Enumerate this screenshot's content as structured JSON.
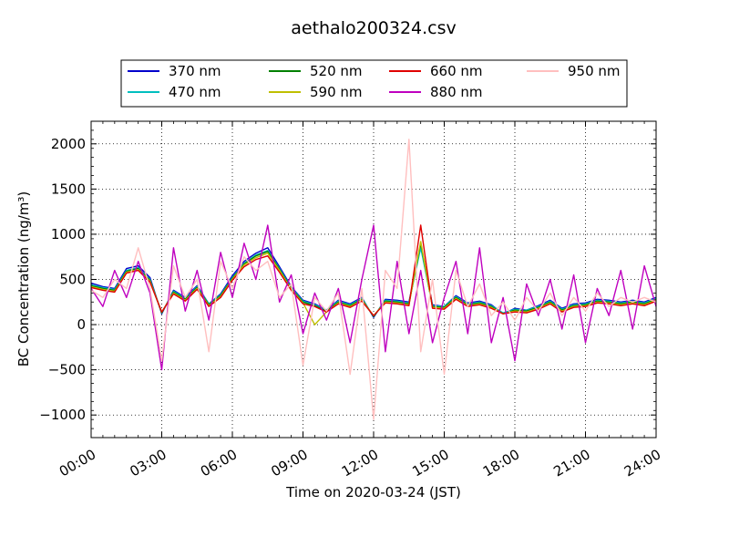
{
  "chart_data": {
    "type": "line",
    "title": "aethalo200324.csv",
    "xlabel": "Time on 2020-03-24 (JST)",
    "ylabel": "BC Concentration (ng/m³)",
    "xlim": [
      "00:00",
      "24:00"
    ],
    "ylim": [
      -1250,
      2250
    ],
    "x_ticks": [
      "00:00",
      "03:00",
      "06:00",
      "09:00",
      "12:00",
      "15:00",
      "18:00",
      "21:00",
      "24:00"
    ],
    "y_ticks": [
      -1000,
      -500,
      0,
      500,
      1000,
      1500,
      2000
    ],
    "y_tick_labels": [
      "−1000",
      "−500",
      "0",
      "500",
      "1000",
      "1500",
      "2000"
    ],
    "grid": true,
    "legend_position": "top-center",
    "series": [
      {
        "name": "370 nm",
        "color": "#0000cc",
        "x": [
          "00:00",
          "00:30",
          "01:00",
          "01:30",
          "02:00",
          "02:30",
          "03:00",
          "03:30",
          "04:00",
          "04:30",
          "05:00",
          "05:30",
          "06:00",
          "06:30",
          "07:00",
          "07:30",
          "08:00",
          "08:30",
          "09:00",
          "09:30",
          "10:00",
          "10:30",
          "11:00",
          "11:30",
          "12:00",
          "12:30",
          "13:00",
          "13:30",
          "14:00",
          "14:30",
          "15:00",
          "15:30",
          "16:00",
          "16:30",
          "17:00",
          "17:30",
          "18:00",
          "18:30",
          "19:00",
          "19:30",
          "20:00",
          "20:30",
          "21:00",
          "21:30",
          "22:00",
          "22:30",
          "23:00",
          "23:30",
          "24:00"
        ],
        "values": [
          460,
          420,
          400,
          620,
          650,
          520,
          120,
          380,
          300,
          430,
          230,
          340,
          540,
          700,
          790,
          850,
          640,
          420,
          270,
          230,
          160,
          270,
          230,
          300,
          80,
          280,
          270,
          250,
          880,
          220,
          200,
          320,
          240,
          260,
          220,
          120,
          180,
          160,
          210,
          270,
          180,
          230,
          240,
          280,
          270,
          250,
          270,
          250,
          300
        ]
      },
      {
        "name": "470 nm",
        "color": "#00bfbf",
        "x": [
          "00:00",
          "00:30",
          "01:00",
          "01:30",
          "02:00",
          "02:30",
          "03:00",
          "03:30",
          "04:00",
          "04:30",
          "05:00",
          "05:30",
          "06:00",
          "06:30",
          "07:00",
          "07:30",
          "08:00",
          "08:30",
          "09:00",
          "09:30",
          "10:00",
          "10:30",
          "11:00",
          "11:30",
          "12:00",
          "12:30",
          "13:00",
          "13:30",
          "14:00",
          "14:30",
          "15:00",
          "15:30",
          "16:00",
          "16:30",
          "17:00",
          "17:30",
          "18:00",
          "18:30",
          "19:00",
          "19:30",
          "20:00",
          "20:30",
          "21:00",
          "21:30",
          "22:00",
          "22:30",
          "23:00",
          "23:30",
          "24:00"
        ],
        "values": [
          440,
          410,
          390,
          600,
          630,
          500,
          130,
          370,
          290,
          420,
          230,
          330,
          520,
          680,
          770,
          820,
          620,
          410,
          260,
          220,
          160,
          260,
          220,
          290,
          90,
          270,
          260,
          240,
          850,
          210,
          200,
          310,
          230,
          250,
          210,
          130,
          170,
          160,
          200,
          260,
          170,
          220,
          230,
          270,
          260,
          240,
          260,
          240,
          290
        ]
      },
      {
        "name": "520 nm",
        "color": "#008000",
        "x": [
          "00:00",
          "00:30",
          "01:00",
          "01:30",
          "02:00",
          "02:30",
          "03:00",
          "03:30",
          "04:00",
          "04:30",
          "05:00",
          "05:30",
          "06:00",
          "06:30",
          "07:00",
          "07:30",
          "08:00",
          "08:30",
          "09:00",
          "09:30",
          "10:00",
          "10:30",
          "11:00",
          "11:30",
          "12:00",
          "12:30",
          "13:00",
          "13:30",
          "14:00",
          "14:30",
          "15:00",
          "15:30",
          "16:00",
          "16:30",
          "17:00",
          "17:30",
          "18:00",
          "18:30",
          "19:00",
          "19:30",
          "20:00",
          "20:30",
          "21:00",
          "21:30",
          "22:00",
          "22:30",
          "23:00",
          "23:30",
          "24:00"
        ],
        "values": [
          430,
          400,
          380,
          590,
          620,
          490,
          130,
          360,
          280,
          410,
          220,
          320,
          510,
          670,
          760,
          810,
          610,
          400,
          250,
          210,
          150,
          250,
          210,
          280,
          90,
          260,
          250,
          230,
          900,
          200,
          190,
          300,
          220,
          240,
          200,
          120,
          160,
          150,
          190,
          250,
          160,
          210,
          220,
          260,
          250,
          230,
          250,
          230,
          280
        ]
      },
      {
        "name": "590 nm",
        "color": "#bfbf00",
        "x": [
          "00:00",
          "00:30",
          "01:00",
          "01:30",
          "02:00",
          "02:30",
          "03:00",
          "03:30",
          "04:00",
          "04:30",
          "05:00",
          "05:30",
          "06:00",
          "06:30",
          "07:00",
          "07:30",
          "08:00",
          "08:30",
          "09:00",
          "09:30",
          "10:00",
          "10:30",
          "11:00",
          "11:30",
          "12:00",
          "12:30",
          "13:00",
          "13:30",
          "14:00",
          "14:30",
          "15:00",
          "15:30",
          "16:00",
          "16:30",
          "17:00",
          "17:30",
          "18:00",
          "18:30",
          "19:00",
          "19:30",
          "20:00",
          "20:30",
          "21:00",
          "21:30",
          "22:00",
          "22:30",
          "23:00",
          "23:30",
          "24:00"
        ],
        "values": [
          420,
          390,
          370,
          580,
          610,
          480,
          140,
          350,
          270,
          400,
          210,
          310,
          500,
          660,
          740,
          790,
          600,
          390,
          240,
          0,
          140,
          240,
          200,
          270,
          100,
          250,
          240,
          220,
          920,
          190,
          180,
          290,
          210,
          230,
          190,
          120,
          150,
          140,
          180,
          240,
          150,
          200,
          210,
          250,
          240,
          220,
          240,
          220,
          270
        ]
      },
      {
        "name": "660 nm",
        "color": "#e00000",
        "x": [
          "00:00",
          "00:30",
          "01:00",
          "01:30",
          "02:00",
          "02:30",
          "03:00",
          "03:30",
          "04:00",
          "04:30",
          "05:00",
          "05:30",
          "06:00",
          "06:30",
          "07:00",
          "07:30",
          "08:00",
          "08:30",
          "09:00",
          "09:30",
          "10:00",
          "10:30",
          "11:00",
          "11:30",
          "12:00",
          "12:30",
          "13:00",
          "13:30",
          "14:00",
          "14:30",
          "15:00",
          "15:30",
          "16:00",
          "16:30",
          "17:00",
          "17:30",
          "18:00",
          "18:30",
          "19:00",
          "19:30",
          "20:00",
          "20:30",
          "21:00",
          "21:30",
          "22:00",
          "22:30",
          "23:00",
          "23:30",
          "24:00"
        ],
        "values": [
          410,
          380,
          360,
          570,
          600,
          470,
          140,
          340,
          260,
          390,
          200,
          300,
          490,
          640,
          720,
          760,
          580,
          380,
          230,
          200,
          140,
          230,
          190,
          260,
          100,
          240,
          230,
          210,
          1100,
          180,
          170,
          280,
          200,
          220,
          180,
          120,
          140,
          130,
          170,
          230,
          140,
          190,
          200,
          240,
          230,
          210,
          230,
          210,
          260
        ]
      },
      {
        "name": "880 nm",
        "color": "#bf00bf",
        "x": [
          "00:00",
          "00:30",
          "01:00",
          "01:30",
          "02:00",
          "02:30",
          "03:00",
          "03:30",
          "04:00",
          "04:30",
          "05:00",
          "05:30",
          "06:00",
          "06:30",
          "07:00",
          "07:30",
          "08:00",
          "08:30",
          "09:00",
          "09:30",
          "10:00",
          "10:30",
          "11:00",
          "11:30",
          "12:00",
          "12:30",
          "13:00",
          "13:30",
          "14:00",
          "14:30",
          "15:00",
          "15:30",
          "16:00",
          "16:30",
          "17:00",
          "17:30",
          "18:00",
          "18:30",
          "19:00",
          "19:30",
          "20:00",
          "20:30",
          "21:00",
          "21:30",
          "22:00",
          "22:30",
          "23:00",
          "23:30",
          "24:00"
        ],
        "values": [
          400,
          200,
          600,
          300,
          700,
          350,
          -500,
          850,
          150,
          600,
          50,
          800,
          300,
          900,
          500,
          1100,
          250,
          550,
          -100,
          350,
          50,
          400,
          -200,
          500,
          1100,
          -300,
          700,
          -100,
          600,
          -200,
          300,
          700,
          -100,
          850,
          -200,
          300,
          -400,
          450,
          100,
          500,
          -50,
          550,
          -200,
          400,
          100,
          600,
          -50,
          650,
          200
        ]
      },
      {
        "name": "950 nm",
        "color": "#ffbfbf",
        "x": [
          "00:00",
          "00:30",
          "01:00",
          "01:30",
          "02:00",
          "02:30",
          "03:00",
          "03:30",
          "04:00",
          "04:30",
          "05:00",
          "05:30",
          "06:00",
          "06:30",
          "07:00",
          "07:30",
          "08:00",
          "08:30",
          "09:00",
          "09:30",
          "10:00",
          "10:30",
          "11:00",
          "11:30",
          "12:00",
          "12:30",
          "13:00",
          "13:30",
          "14:00",
          "14:30",
          "15:00",
          "15:30",
          "16:00",
          "16:30",
          "17:00",
          "17:30",
          "18:00",
          "18:30",
          "19:00",
          "19:30",
          "20:00",
          "20:30",
          "21:00",
          "21:30",
          "22:00",
          "22:30",
          "23:00",
          "23:30",
          "24:00"
        ],
        "values": [
          380,
          300,
          500,
          400,
          850,
          400,
          -400,
          650,
          300,
          500,
          -300,
          700,
          400,
          750,
          600,
          700,
          300,
          450,
          -450,
          300,
          150,
          350,
          -550,
          400,
          -1050,
          600,
          400,
          2050,
          -300,
          500,
          -550,
          600,
          200,
          450,
          100,
          250,
          50,
          300,
          150,
          350,
          100,
          300,
          150,
          350,
          200,
          300,
          250,
          300,
          250
        ]
      }
    ]
  }
}
